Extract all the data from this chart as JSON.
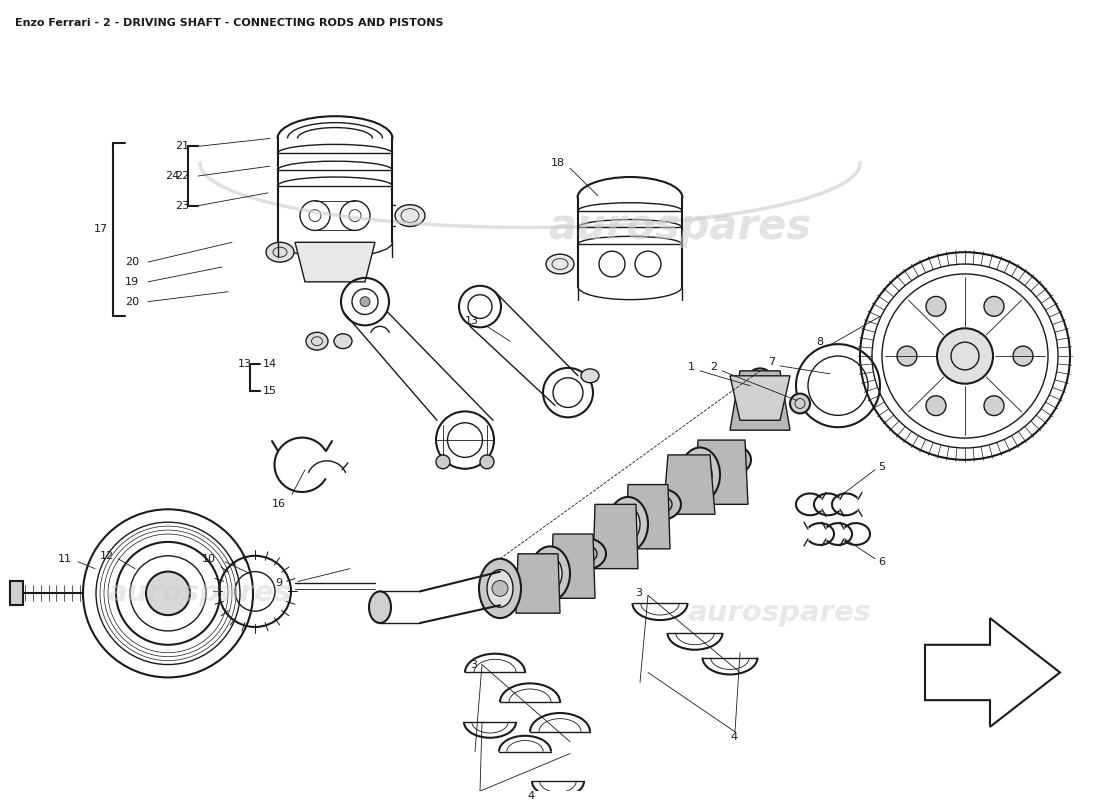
{
  "title": "Enzo Ferrari - 2 - DRIVING SHAFT - CONNECTING RODS AND PISTONS",
  "title_fontsize": 8,
  "background_color": "#ffffff",
  "watermark_text": "aurospares",
  "watermark_color": "#cccccc",
  "watermark_fontsize": 30,
  "fig_width": 11.0,
  "fig_height": 8.0,
  "dpi": 100,
  "line_color": "#1a1a1a",
  "label_fontsize": 8,
  "label_fontsize_sm": 7
}
